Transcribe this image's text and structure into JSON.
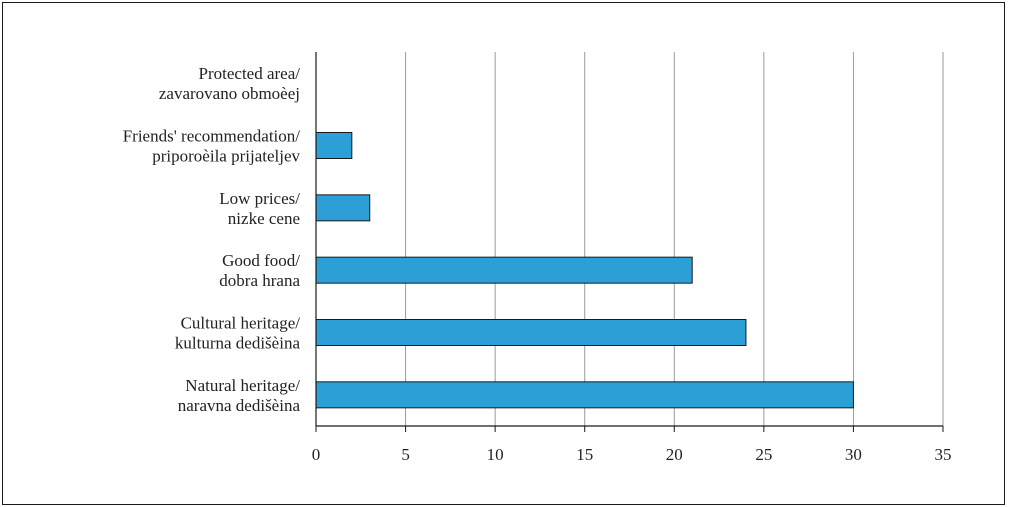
{
  "chart_data": {
    "type": "bar",
    "orientation": "horizontal",
    "title": "",
    "xlabel": "",
    "ylabel": "",
    "categories": [
      [
        "Protected area/",
        "zavarovano obmoèej"
      ],
      [
        "Friends' recommendation/",
        "priporoèila prijateljev"
      ],
      [
        "Low prices/",
        "nizke cene"
      ],
      [
        "Good food/",
        "dobra hrana"
      ],
      [
        "Cultural heritage/",
        "kulturna dedišèina"
      ],
      [
        "Natural heritage/",
        "naravna dedišèina"
      ]
    ],
    "values": [
      0,
      2,
      3,
      21,
      24,
      30
    ],
    "xlim": [
      0,
      35
    ],
    "xticks": [
      0,
      5,
      10,
      15,
      20,
      25,
      30,
      35
    ],
    "grid": "vertical",
    "legend": "none",
    "bar_color": "#2b9fd6",
    "bar_border": "#1a1a1a",
    "grid_color": "#9a9a9a"
  }
}
